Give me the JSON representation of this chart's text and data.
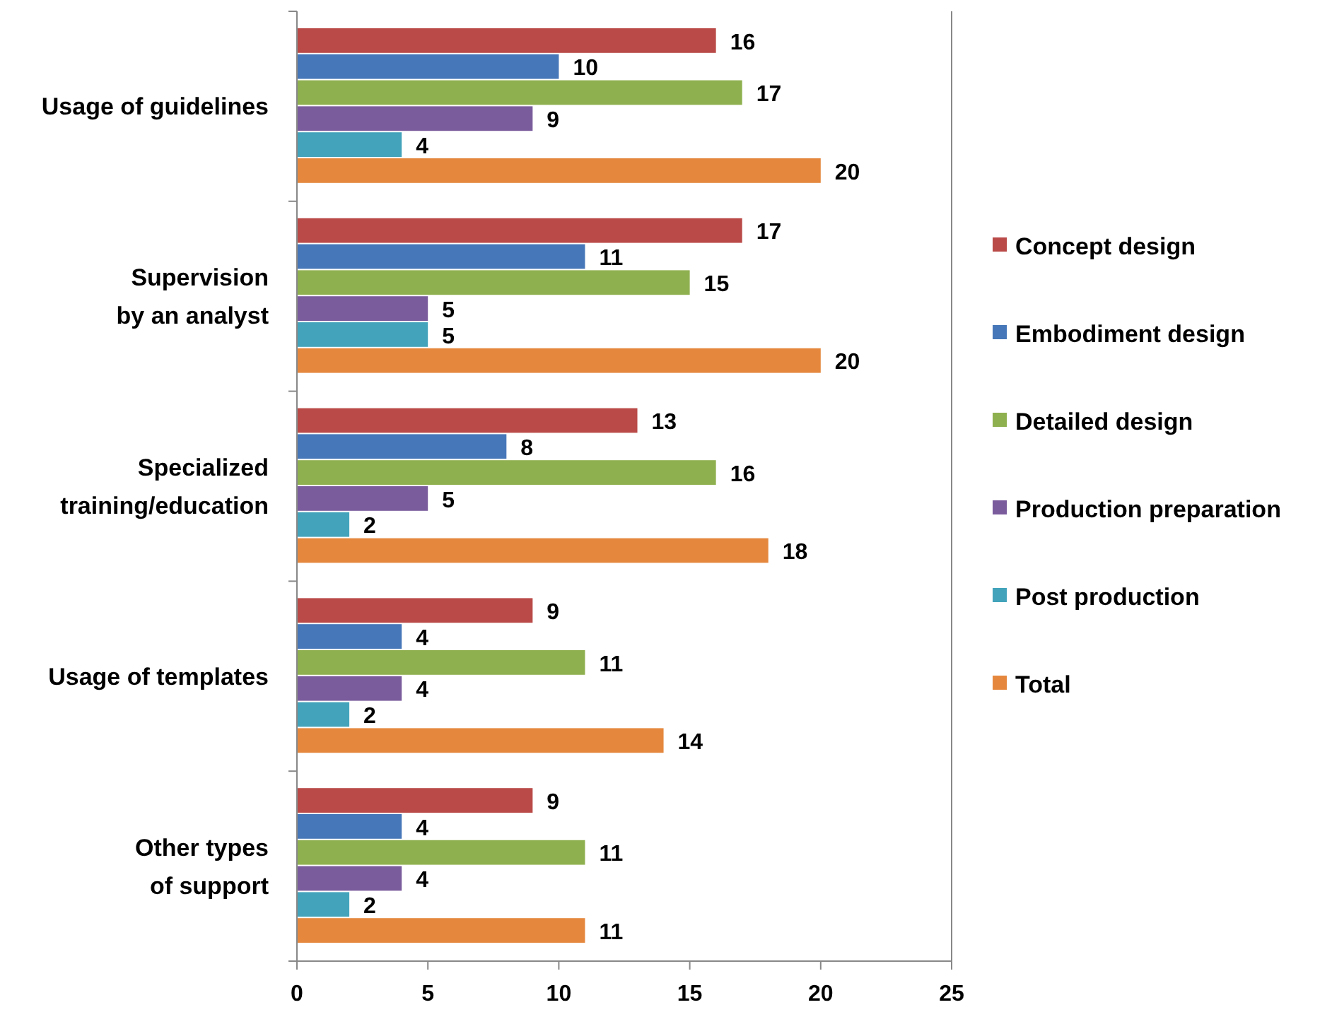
{
  "chart_data": {
    "type": "bar",
    "orientation": "horizontal",
    "categories": [
      "Usage of guidelines",
      "Supervision\nby an analyst",
      "Specialized\ntraining/education",
      "Usage of templates",
      "Other types\nof support"
    ],
    "series": [
      {
        "name": "Concept design",
        "color": "#b94a47",
        "values": [
          16,
          17,
          13,
          9,
          9
        ]
      },
      {
        "name": "Embodiment design",
        "color": "#4677b8",
        "values": [
          10,
          11,
          8,
          4,
          4
        ]
      },
      {
        "name": "Detailed design",
        "color": "#8fb04f",
        "values": [
          17,
          15,
          16,
          11,
          11
        ]
      },
      {
        "name": "Production preparation",
        "color": "#7a5c9c",
        "values": [
          9,
          5,
          5,
          4,
          4
        ]
      },
      {
        "name": "Post production",
        "color": "#43a3bb",
        "values": [
          4,
          5,
          2,
          2,
          2
        ]
      },
      {
        "name": "Total",
        "color": "#e5883e",
        "values": [
          20,
          20,
          18,
          14,
          11
        ]
      }
    ],
    "xlim": [
      0,
      25
    ],
    "xticks": [
      0,
      5,
      10,
      15,
      20,
      25
    ],
    "data_labels": true,
    "legend": "right",
    "grid": false
  }
}
